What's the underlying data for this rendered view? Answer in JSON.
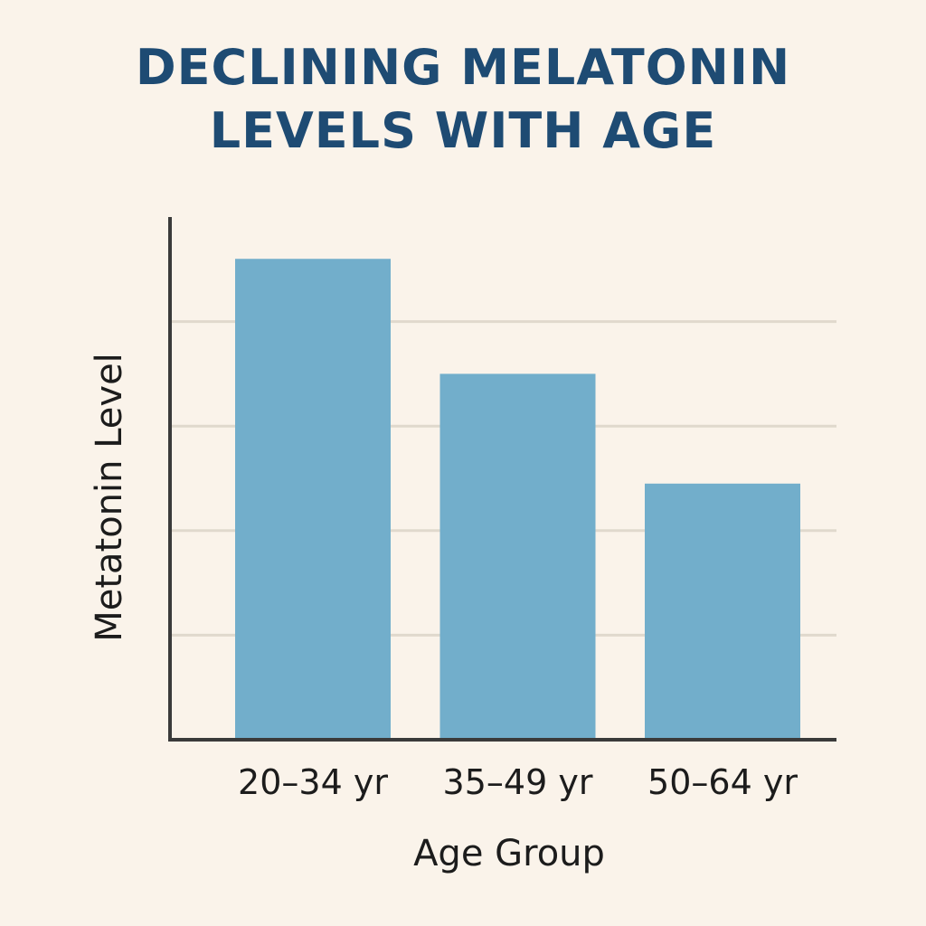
{
  "chart_data": {
    "type": "bar",
    "title_lines": [
      "DECLINIΝG MELATONIN",
      "LEVELS WITH AGE"
    ],
    "categories": [
      "20–34 yr",
      "35–49 yr",
      "50–64 yr"
    ],
    "values": [
      4.6,
      3.5,
      2.45
    ],
    "xlabel": "Age Group",
    "ylabel": "Metatonin Level",
    "ylim": [
      0,
      5
    ],
    "grid": true,
    "gridlines": [
      1,
      2,
      3,
      4
    ],
    "show_tick_values": false
  },
  "colors": {
    "background": "#faf3ea",
    "title": "#1e4b73",
    "bar": "#72aecb",
    "axis": "#3a3a3a",
    "grid": "#e0d9cd",
    "text": "#1c1c1c"
  }
}
